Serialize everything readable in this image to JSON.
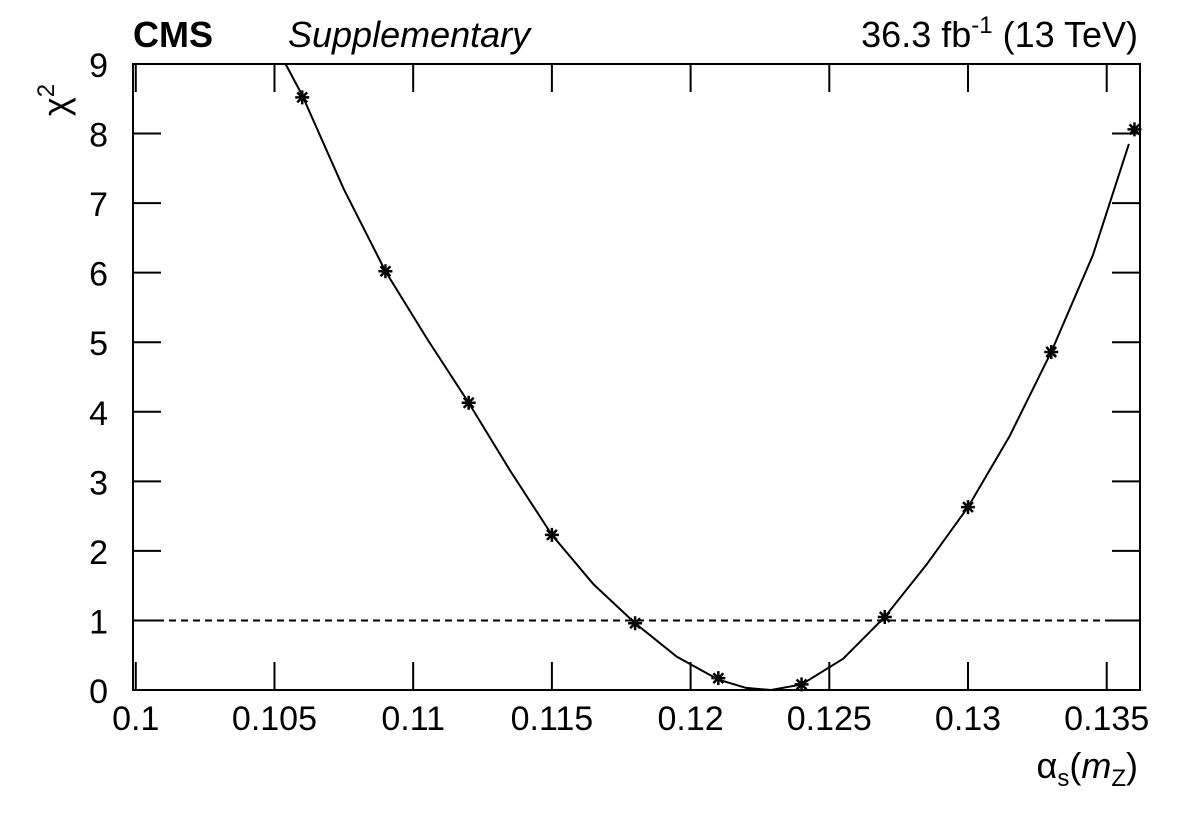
{
  "chart_data": {
    "type": "scatter",
    "experiment": "CMS",
    "status": "Supplementary",
    "lumi": [
      "36.3 fb",
      "-1",
      " (13 TeV)"
    ],
    "y_label": [
      "χ",
      "2"
    ],
    "x_label": [
      "α",
      "s",
      "(",
      "m",
      "Z",
      ")"
    ],
    "series": [
      {
        "name": "scan",
        "color": "#000000",
        "x": [
          0.106,
          0.109,
          0.112,
          0.115,
          0.118,
          0.121,
          0.124,
          0.127,
          0.13,
          0.133,
          0.136
        ],
        "values": [
          8.52,
          6.02,
          4.13,
          2.23,
          0.96,
          0.17,
          0.08,
          1.05,
          2.63,
          4.86,
          8.06
        ]
      },
      {
        "name": "fit",
        "color": "#000000",
        "x": [
          0.1054,
          0.106,
          0.1075,
          0.109,
          0.1105,
          0.112,
          0.1135,
          0.115,
          0.1165,
          0.118,
          0.1195,
          0.121,
          0.122,
          0.1229,
          0.124,
          0.1255,
          0.127,
          0.1285,
          0.13,
          0.1315,
          0.133,
          0.1345,
          0.1358
        ],
        "values": [
          9,
          8.55,
          7.2,
          6.02,
          5.05,
          4.13,
          3.15,
          2.23,
          1.52,
          0.96,
          0.48,
          0.15,
          0.03,
          0,
          0.08,
          0.45,
          1.05,
          1.8,
          2.63,
          3.65,
          4.86,
          6.25,
          7.85
        ]
      }
    ],
    "hline": 1,
    "xlim": [
      0.0999,
      0.1362
    ],
    "ylim": [
      0,
      9
    ],
    "xticks": [
      0.1,
      0.105,
      0.11,
      0.115,
      0.12,
      0.125,
      0.13,
      0.135
    ],
    "yticks": [
      0,
      1,
      2,
      3,
      4,
      5,
      6,
      7,
      8,
      9
    ]
  }
}
